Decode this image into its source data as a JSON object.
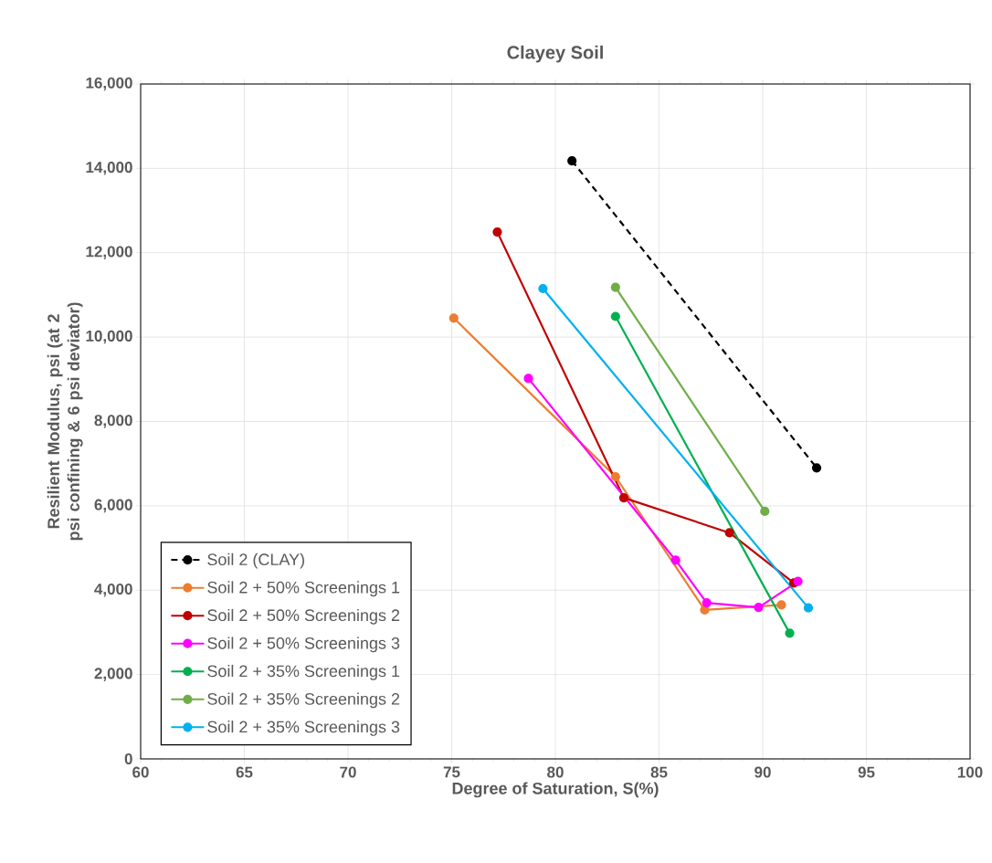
{
  "chart_data": {
    "type": "line",
    "title": "Clayey Soil",
    "xlabel": "Degree of Saturation, S(%)",
    "ylabel": "Resilient Modulus, psi (at 2 psi confining & 6 psi deviator)",
    "xlim": [
      60,
      100
    ],
    "xticks": [
      60,
      65,
      70,
      75,
      80,
      85,
      90,
      95,
      100
    ],
    "ylim": [
      0,
      16000
    ],
    "yticks": [
      0,
      {
        "value": 2000,
        "label": "2,000"
      },
      {
        "value": 4000,
        "label": "4,000"
      },
      {
        "value": 6000,
        "label": "6,000"
      },
      {
        "value": 8000,
        "label": "8,000"
      },
      {
        "value": 10000,
        "label": "10,000"
      },
      {
        "value": 12000,
        "label": "12,000"
      },
      {
        "value": 14000,
        "label": "14,000"
      },
      {
        "value": 16000,
        "label": "16,000"
      }
    ],
    "grid": true,
    "legend": "bottom left",
    "marker": "circle",
    "series": [
      {
        "name": "Soil 2 (CLAY)",
        "color": "#000000",
        "line_style": "dashed",
        "x": [
          80.8,
          92.6
        ],
        "values": [
          14180,
          6900
        ]
      },
      {
        "name": "Soil 2 + 50% Screenings 1",
        "color": "#ed7d31",
        "line_style": "solid",
        "x": [
          75.1,
          82.9,
          87.2,
          90.9
        ],
        "values": [
          10450,
          6690,
          3530,
          3650
        ]
      },
      {
        "name": "Soil 2 + 50% Screenings 2",
        "color": "#c00000",
        "line_style": "solid",
        "x": [
          77.2,
          83.3,
          88.4,
          91.5
        ],
        "values": [
          12490,
          6190,
          5360,
          4170
        ]
      },
      {
        "name": "Soil 2 + 50% Screenings 3",
        "color": "#ff00ff",
        "line_style": "solid",
        "x": [
          78.7,
          85.8,
          87.3,
          89.8,
          91.7
        ],
        "values": [
          9020,
          4710,
          3700,
          3590,
          4210
        ]
      },
      {
        "name": "Soil 2 + 35% Screenings 1",
        "color": "#00b050",
        "line_style": "solid",
        "x": [
          82.9,
          91.3
        ],
        "values": [
          10490,
          2980
        ]
      },
      {
        "name": "Soil 2 + 35% Screenings 2",
        "color": "#70ad47",
        "line_style": "solid",
        "x": [
          82.9,
          90.1
        ],
        "values": [
          11180,
          5870
        ]
      },
      {
        "name": "Soil 2 + 35% Screenings 3",
        "color": "#00b0f0",
        "line_style": "solid",
        "x": [
          79.4,
          92.2
        ],
        "values": [
          11150,
          3580
        ]
      }
    ]
  }
}
